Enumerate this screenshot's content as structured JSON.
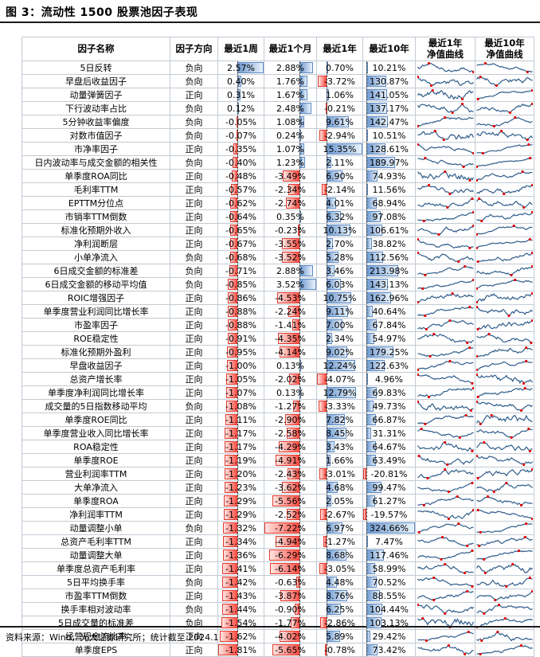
{
  "figure": {
    "title": "图 3：流动性 1500 股票池因子表现",
    "source_note": "资料来源：Wind，光大证券研究所；统计截至 2024.11.22"
  },
  "colors": {
    "bar_positive_solid": "#6f9bd1",
    "bar_positive_fade": "#eaf2fb",
    "bar_positive_border": "#5e8ac2",
    "bar_negative_solid": "#ff5147",
    "bar_negative_fade": "#ffe6e3",
    "bar_negative_border": "#e03c31",
    "sparkline": "#2e5c8a",
    "sparkline_marker": "#e00000",
    "grid": "#c2cad4"
  },
  "chart_data": {
    "type": "table",
    "columns": [
      "因子名称",
      "因子方向",
      "最近1周",
      "最近1个月",
      "最近1年",
      "最近10年",
      "最近1年\n净值曲线",
      "最近10年\n净值曲线"
    ],
    "rows": [
      [
        "5日反转",
        "负向",
        "2.57%",
        "2.88%",
        "0.70%",
        "10.21%"
      ],
      [
        "早盘后收益因子",
        "负向",
        "0.40%",
        "1.76%",
        "-3.72%",
        "130.87%"
      ],
      [
        "动量弹簧因子",
        "正向",
        "0.31%",
        "1.67%",
        "1.06%",
        "141.05%"
      ],
      [
        "下行波动率占比",
        "负向",
        "0.12%",
        "2.48%",
        "-0.21%",
        "137.17%"
      ],
      [
        "5分钟收益率偏度",
        "负向",
        "-0.05%",
        "1.08%",
        "9.61%",
        "142.47%"
      ],
      [
        "对数市值因子",
        "负向",
        "-0.07%",
        "0.24%",
        "-2.94%",
        "10.51%"
      ],
      [
        "市净率因子",
        "正向",
        "-0.35%",
        "1.07%",
        "15.35%",
        "128.61%"
      ],
      [
        "日内波动率与成交金额的相关性",
        "负向",
        "-0.40%",
        "1.23%",
        "2.11%",
        "189.97%"
      ],
      [
        "单季度ROA同比",
        "正向",
        "-0.48%",
        "-3.49%",
        "6.90%",
        "74.93%"
      ],
      [
        "毛利率TTM",
        "正向",
        "-0.57%",
        "-2.34%",
        "-2.14%",
        "11.56%"
      ],
      [
        "EPTTM分位点",
        "正向",
        "-0.62%",
        "-2.74%",
        "4.01%",
        "68.94%"
      ],
      [
        "市销率TTM倒数",
        "正向",
        "-0.64%",
        "0.35%",
        "6.32%",
        "97.08%"
      ],
      [
        "标准化预期外收入",
        "正向",
        "-0.65%",
        "-0.23%",
        "10.13%",
        "106.61%"
      ],
      [
        "净利润断层",
        "正向",
        "-0.67%",
        "-3.55%",
        "2.70%",
        "38.82%"
      ],
      [
        "小单净流入",
        "负向",
        "-0.68%",
        "-3.52%",
        "5.28%",
        "112.56%"
      ],
      [
        "6日成交金额的标准差",
        "负向",
        "-0.71%",
        "2.88%",
        "3.46%",
        "213.98%"
      ],
      [
        "6日成交金额的移动平均值",
        "负向",
        "-0.85%",
        "3.52%",
        "6.03%",
        "143.13%"
      ],
      [
        "ROIC增强因子",
        "正向",
        "-0.86%",
        "-4.53%",
        "10.75%",
        "162.96%"
      ],
      [
        "单季度营业利润同比增长率",
        "正向",
        "-0.88%",
        "-2.24%",
        "9.11%",
        "40.64%"
      ],
      [
        "市盈率因子",
        "正向",
        "-0.88%",
        "-1.41%",
        "7.00%",
        "67.84%"
      ],
      [
        "ROE稳定性",
        "正向",
        "-0.91%",
        "-4.35%",
        "2.34%",
        "54.97%"
      ],
      [
        "标准化预期外盈利",
        "正向",
        "-0.95%",
        "-4.14%",
        "9.02%",
        "179.25%"
      ],
      [
        "早盘收益因子",
        "正向",
        "-1.00%",
        "0.13%",
        "12.24%",
        "122.63%"
      ],
      [
        "总资产增长率",
        "正向",
        "-1.05%",
        "-2.02%",
        "-4.07%",
        "4.96%"
      ],
      [
        "单季度净利润同比增长率",
        "正向",
        "-1.07%",
        "0.13%",
        "12.79%",
        "69.83%"
      ],
      [
        "成交量的5日指数移动平均",
        "负向",
        "-1.08%",
        "-1.27%",
        "-3.33%",
        "49.73%"
      ],
      [
        "单季度ROE同比",
        "正向",
        "-1.11%",
        "-2.90%",
        "7.82%",
        "66.87%"
      ],
      [
        "单季度营业收入同比增长率",
        "正向",
        "-1.17%",
        "-2.58%",
        "8.45%",
        "31.31%"
      ],
      [
        "ROA稳定性",
        "正向",
        "-1.17%",
        "-4.29%",
        "3.43%",
        "64.67%"
      ],
      [
        "单季度ROE",
        "正向",
        "-1.19%",
        "-4.91%",
        "1.66%",
        "63.49%"
      ],
      [
        "营业利润率TTM",
        "正向",
        "-1.20%",
        "-2.43%",
        "-3.01%",
        "-20.81%"
      ],
      [
        "大单净流入",
        "正向",
        "-1.23%",
        "-3.62%",
        "4.68%",
        "99.47%"
      ],
      [
        "单季度ROA",
        "正向",
        "-1.29%",
        "-5.56%",
        "2.05%",
        "61.27%"
      ],
      [
        "净利润率TTM",
        "正向",
        "-1.29%",
        "-2.52%",
        "-2.67%",
        "-19.57%"
      ],
      [
        "动量调整小单",
        "负向",
        "-1.32%",
        "-7.22%",
        "6.97%",
        "324.66%"
      ],
      [
        "总资产毛利率TTM",
        "正向",
        "-1.34%",
        "-4.94%",
        "-1.27%",
        "7.47%"
      ],
      [
        "动量调整大单",
        "正向",
        "-1.36%",
        "-6.29%",
        "8.68%",
        "117.46%"
      ],
      [
        "单季度总资产毛利率",
        "正向",
        "-1.41%",
        "-6.14%",
        "-3.05%",
        "58.99%"
      ],
      [
        "5日平均换手率",
        "负向",
        "-1.42%",
        "-0.63%",
        "4.48%",
        "70.52%"
      ],
      [
        "市盈率TTM倒数",
        "正向",
        "-1.43%",
        "-3.87%",
        "8.76%",
        "88.55%"
      ],
      [
        "换手率相对波动率",
        "负向",
        "-1.44%",
        "-0.90%",
        "6.25%",
        "104.44%"
      ],
      [
        "5日成交量的标准差",
        "负向",
        "-1.54%",
        "-1.77%",
        "-2.86%",
        "103.13%"
      ],
      [
        "经营现金流比率",
        "正向",
        "-1.62%",
        "-4.02%",
        "5.89%",
        "29.42%"
      ],
      [
        "单季度EPS",
        "正向",
        "-1.81%",
        "-5.65%",
        "-0.78%",
        "73.42%"
      ]
    ]
  }
}
